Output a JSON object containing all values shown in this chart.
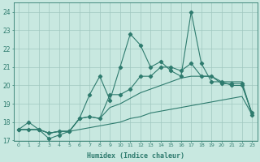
{
  "xlabel": "Humidex (Indice chaleur)",
  "x": [
    0,
    1,
    2,
    3,
    4,
    5,
    6,
    7,
    8,
    9,
    10,
    11,
    12,
    13,
    14,
    15,
    16,
    17,
    18,
    19,
    20,
    21,
    22,
    23
  ],
  "line_main": [
    17.6,
    18.0,
    17.6,
    17.1,
    17.3,
    17.5,
    18.2,
    19.5,
    20.5,
    19.2,
    21.0,
    22.8,
    22.2,
    21.0,
    21.3,
    20.8,
    20.5,
    24.0,
    21.2,
    20.2,
    20.2,
    20.0,
    20.0,
    18.5
  ],
  "line_avg": [
    17.6,
    17.6,
    17.6,
    17.4,
    17.5,
    17.5,
    18.2,
    18.3,
    18.2,
    19.5,
    19.5,
    19.8,
    20.5,
    20.5,
    21.0,
    21.0,
    20.8,
    21.2,
    20.5,
    20.5,
    20.1,
    20.1,
    20.1,
    18.4
  ],
  "line_smooth1": [
    17.6,
    17.6,
    17.6,
    17.4,
    17.5,
    17.5,
    18.2,
    18.3,
    18.2,
    18.8,
    19.0,
    19.3,
    19.6,
    19.8,
    20.0,
    20.2,
    20.4,
    20.5,
    20.5,
    20.5,
    20.2,
    20.2,
    20.2,
    18.4
  ],
  "line_smooth2": [
    17.6,
    17.6,
    17.6,
    17.4,
    17.5,
    17.5,
    17.6,
    17.7,
    17.8,
    17.9,
    18.0,
    18.2,
    18.3,
    18.5,
    18.6,
    18.7,
    18.8,
    18.9,
    19.0,
    19.1,
    19.2,
    19.3,
    19.4,
    18.4
  ],
  "line_color": "#2e7b6e",
  "bg_color": "#c8e8e0",
  "grid_color": "#a0c8c0",
  "ylim": [
    17,
    24.5
  ],
  "yticks": [
    17,
    18,
    19,
    20,
    21,
    22,
    23,
    24
  ]
}
